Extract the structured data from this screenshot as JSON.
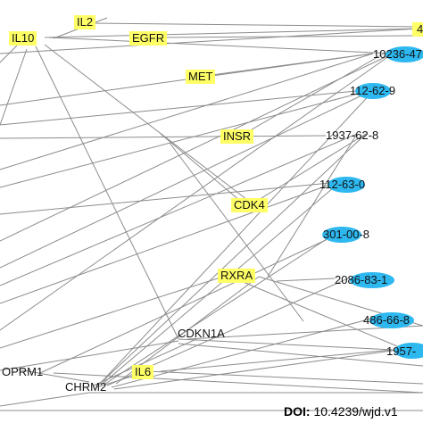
{
  "genes": {
    "il2": "IL2",
    "il10": "IL10",
    "egfr": "EGFR",
    "met": "MET",
    "insr": "INSR",
    "cdk4": "CDK4",
    "rxra": "RXRA",
    "cdkn1a": "CDKN1A",
    "il6": "IL6",
    "oprm1": "OPRM1",
    "chrm2": "CHRM2",
    "top_partial": "4"
  },
  "compounds": {
    "c10236": "10236-47",
    "c112629": "112-62-9",
    "c1937628": "1937-62-8",
    "c112630": "112-63-0",
    "c301008": "301-00-8",
    "c2086831": "2086-83-1",
    "c486668": "486-66-8",
    "c1957": "1957-"
  },
  "doi": {
    "label": "DOI:",
    "value": "10.4239/wjd.v1"
  },
  "colors": {
    "gene_fill": "#ffff66",
    "compound_fill": "#2eb8f0",
    "edge": "#8c8c8c"
  }
}
